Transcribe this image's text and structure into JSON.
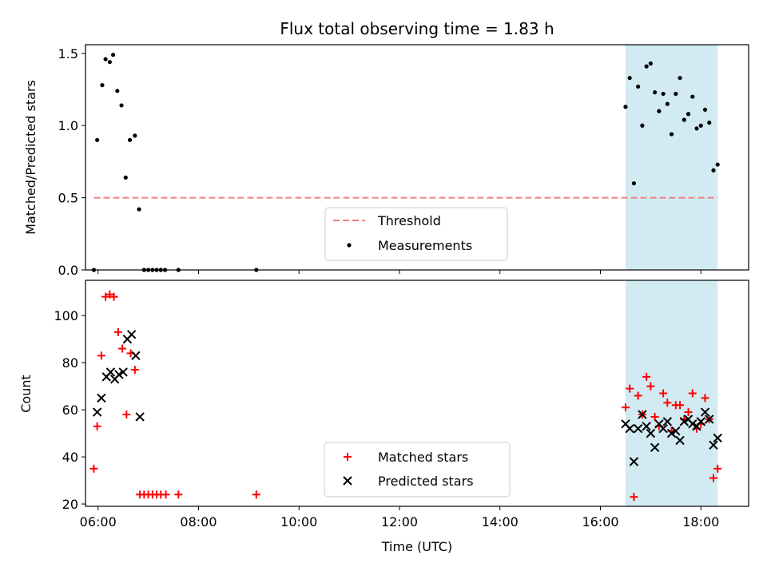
{
  "chart_data": [
    {
      "type": "scatter",
      "title": "Flux total observing time = 1.83 h",
      "xlabel": "",
      "ylabel": "Matched/Predicted stars",
      "xlim": [
        "05:45",
        "18:57"
      ],
      "ylim": [
        0,
        1.56
      ],
      "yticks": [
        "0.0",
        "0.5",
        "1.0",
        "1.5"
      ],
      "xticks": [
        "06:00",
        "08:00",
        "10:00",
        "12:00",
        "14:00",
        "16:00",
        "18:00"
      ],
      "grid": false,
      "legend_position": "lower-center",
      "shaded_span": {
        "x": [
          "16:30",
          "18:20"
        ],
        "color": "#add8e6"
      },
      "threshold": {
        "name": "Threshold",
        "y": 0.5,
        "x": [
          "05:55",
          "18:20"
        ],
        "color": "#f08080",
        "style": "dashed"
      },
      "series": [
        {
          "name": "Measurements",
          "marker": "dot",
          "color": "#000000",
          "points": [
            [
              "05:55",
              0
            ],
            [
              "05:59",
              0.9
            ],
            [
              "06:05",
              1.28
            ],
            [
              "06:09",
              1.46
            ],
            [
              "06:14",
              1.44
            ],
            [
              "06:18",
              1.49
            ],
            [
              "06:23",
              1.24
            ],
            [
              "06:28",
              1.14
            ],
            [
              "06:33",
              0.64
            ],
            [
              "06:38",
              0.9
            ],
            [
              "06:44",
              0.93
            ],
            [
              "06:49",
              0.42
            ],
            [
              "06:55",
              0
            ],
            [
              "07:00",
              0
            ],
            [
              "07:05",
              0
            ],
            [
              "07:10",
              0
            ],
            [
              "07:15",
              0
            ],
            [
              "07:20",
              0
            ],
            [
              "07:36",
              0
            ],
            [
              "09:09",
              0
            ],
            [
              "16:30",
              1.13
            ],
            [
              "16:35",
              1.33
            ],
            [
              "16:40",
              0.6
            ],
            [
              "16:45",
              1.27
            ],
            [
              "16:50",
              1.0
            ],
            [
              "16:55",
              1.41
            ],
            [
              "17:00",
              1.43
            ],
            [
              "17:05",
              1.23
            ],
            [
              "17:10",
              1.1
            ],
            [
              "17:15",
              1.22
            ],
            [
              "17:20",
              1.15
            ],
            [
              "17:25",
              0.94
            ],
            [
              "17:30",
              1.22
            ],
            [
              "17:35",
              1.33
            ],
            [
              "17:40",
              1.04
            ],
            [
              "17:45",
              1.08
            ],
            [
              "17:50",
              1.2
            ],
            [
              "17:55",
              0.98
            ],
            [
              "18:00",
              1.0
            ],
            [
              "18:05",
              1.11
            ],
            [
              "18:10",
              1.02
            ],
            [
              "18:15",
              0.69
            ],
            [
              "18:20",
              0.73
            ]
          ]
        }
      ]
    },
    {
      "type": "scatter",
      "title": "",
      "xlabel": "Time (UTC)",
      "ylabel": "Count",
      "xlim": [
        "05:45",
        "18:57"
      ],
      "ylim": [
        19,
        115
      ],
      "yticks": [
        "20",
        "40",
        "60",
        "80",
        "100"
      ],
      "xticks": [
        "06:00",
        "08:00",
        "10:00",
        "12:00",
        "14:00",
        "16:00",
        "18:00"
      ],
      "grid": false,
      "legend_position": "lower-center",
      "shaded_span": {
        "x": [
          "16:30",
          "18:20"
        ],
        "color": "#add8e6"
      },
      "series": [
        {
          "name": "Matched stars",
          "marker": "plus",
          "color": "#ff0000",
          "points": [
            [
              "05:55",
              35
            ],
            [
              "05:59",
              53
            ],
            [
              "06:04",
              83
            ],
            [
              "06:09",
              108
            ],
            [
              "06:14",
              109
            ],
            [
              "06:19",
              108
            ],
            [
              "06:24",
              93
            ],
            [
              "06:29",
              86
            ],
            [
              "06:34",
              58
            ],
            [
              "06:39",
              84
            ],
            [
              "06:44",
              77
            ],
            [
              "06:50",
              24
            ],
            [
              "06:55",
              24
            ],
            [
              "07:00",
              24
            ],
            [
              "07:05",
              24
            ],
            [
              "07:10",
              24
            ],
            [
              "07:15",
              24
            ],
            [
              "07:21",
              24
            ],
            [
              "07:36",
              24
            ],
            [
              "09:09",
              24
            ],
            [
              "16:30",
              61
            ],
            [
              "16:35",
              69
            ],
            [
              "16:40",
              23
            ],
            [
              "16:45",
              66
            ],
            [
              "16:50",
              58
            ],
            [
              "16:55",
              74
            ],
            [
              "17:00",
              70
            ],
            [
              "17:05",
              57
            ],
            [
              "17:10",
              53
            ],
            [
              "17:15",
              67
            ],
            [
              "17:20",
              63
            ],
            [
              "17:25",
              51
            ],
            [
              "17:30",
              62
            ],
            [
              "17:35",
              62
            ],
            [
              "17:40",
              56
            ],
            [
              "17:45",
              59
            ],
            [
              "17:50",
              67
            ],
            [
              "17:55",
              52
            ],
            [
              "18:00",
              54
            ],
            [
              "18:05",
              65
            ],
            [
              "18:10",
              56
            ],
            [
              "18:15",
              31
            ],
            [
              "18:20",
              35
            ]
          ]
        },
        {
          "name": "Predicted stars",
          "marker": "x",
          "color": "#000000",
          "points": [
            [
              "05:59",
              59
            ],
            [
              "06:04",
              65
            ],
            [
              "06:10",
              74
            ],
            [
              "06:15",
              76
            ],
            [
              "06:20",
              73
            ],
            [
              "06:25",
              75
            ],
            [
              "06:30",
              76
            ],
            [
              "06:35",
              90
            ],
            [
              "06:40",
              92
            ],
            [
              "06:45",
              83
            ],
            [
              "06:50",
              57
            ],
            [
              "16:30",
              54
            ],
            [
              "16:35",
              52
            ],
            [
              "16:40",
              38
            ],
            [
              "16:45",
              52
            ],
            [
              "16:50",
              58
            ],
            [
              "16:55",
              53
            ],
            [
              "17:00",
              50
            ],
            [
              "17:05",
              44
            ],
            [
              "17:10",
              54
            ],
            [
              "17:15",
              52
            ],
            [
              "17:20",
              55
            ],
            [
              "17:25",
              50
            ],
            [
              "17:30",
              51
            ],
            [
              "17:35",
              47
            ],
            [
              "17:40",
              55
            ],
            [
              "17:45",
              56
            ],
            [
              "17:50",
              54
            ],
            [
              "17:55",
              53
            ],
            [
              "18:00",
              55
            ],
            [
              "18:05",
              59
            ],
            [
              "18:10",
              56
            ],
            [
              "18:15",
              45
            ],
            [
              "18:20",
              48
            ]
          ]
        }
      ]
    }
  ]
}
